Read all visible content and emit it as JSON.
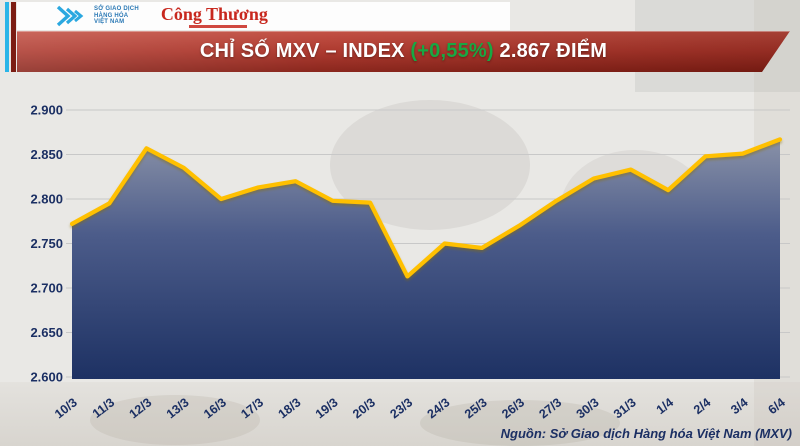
{
  "header": {
    "mxv_logo": {
      "line1": "SỞ GIAO DỊCH",
      "line2": "HÀNG HÓA",
      "line3": "VIỆT NAM"
    },
    "congthuong_logo": {
      "text": "Công Thương"
    },
    "banner": {
      "title": "CHỈ SỐ MXV – INDEX",
      "change": "(+0,55%)",
      "value": "2.867 ĐIỂM",
      "background_red": "#a5281e",
      "change_green": "#18a843"
    }
  },
  "chart_data": {
    "type": "area",
    "title": "CHỈ SỐ MXV – INDEX",
    "categories": [
      "10/3",
      "11/3",
      "12/3",
      "13/3",
      "16/3",
      "17/3",
      "18/3",
      "19/3",
      "20/3",
      "23/3",
      "24/3",
      "25/3",
      "26/3",
      "27/3",
      "30/3",
      "31/3",
      "1/4",
      "2/4",
      "3/4",
      "6/4"
    ],
    "values": [
      2772,
      2795,
      2857,
      2835,
      2800,
      2813,
      2820,
      2798,
      2796,
      2713,
      2750,
      2745,
      2770,
      2798,
      2823,
      2833,
      2810,
      2848,
      2851,
      2867
    ],
    "ylim": [
      2600,
      2900
    ],
    "ytick_labels": [
      "2.900",
      "2.850",
      "2.800",
      "2.750",
      "2.700",
      "2.650",
      "2.600"
    ],
    "xlabel": "",
    "ylabel": "",
    "grid": true,
    "legend": "none",
    "line_color": "#ffc000",
    "line_shadow_color": "#8a6d00",
    "fill_top": "#8a92a8",
    "fill_mid": "#4c5c8a",
    "fill_bottom": "#1d3163",
    "gridline_color": "#c8c8c8",
    "tick_text_color": "#1b2f63"
  },
  "footer": {
    "source": "Nguồn: Sở Giao dịch Hàng hóa Việt Nam (MXV)"
  }
}
